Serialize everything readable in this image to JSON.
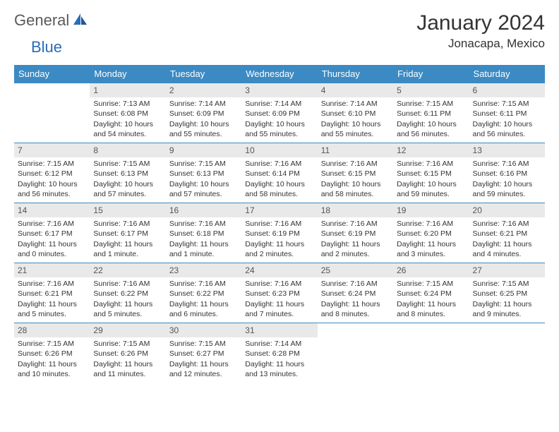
{
  "brand": {
    "first": "General",
    "second": "Blue"
  },
  "title": "January 2024",
  "location": "Jonacapa, Mexico",
  "colors": {
    "header_bg": "#3b8ac4",
    "header_text": "#ffffff",
    "row_border": "#3b8ac4",
    "daynum_bg": "#e9e9e9",
    "daynum_text": "#555555",
    "body_text": "#333333",
    "logo_gray": "#5a5a5a",
    "logo_blue": "#2a6db8"
  },
  "weekdays": [
    "Sunday",
    "Monday",
    "Tuesday",
    "Wednesday",
    "Thursday",
    "Friday",
    "Saturday"
  ],
  "weeks": [
    [
      {
        "n": "",
        "sr": "",
        "ss": "",
        "dl": ""
      },
      {
        "n": "1",
        "sr": "Sunrise: 7:13 AM",
        "ss": "Sunset: 6:08 PM",
        "dl": "Daylight: 10 hours and 54 minutes."
      },
      {
        "n": "2",
        "sr": "Sunrise: 7:14 AM",
        "ss": "Sunset: 6:09 PM",
        "dl": "Daylight: 10 hours and 55 minutes."
      },
      {
        "n": "3",
        "sr": "Sunrise: 7:14 AM",
        "ss": "Sunset: 6:09 PM",
        "dl": "Daylight: 10 hours and 55 minutes."
      },
      {
        "n": "4",
        "sr": "Sunrise: 7:14 AM",
        "ss": "Sunset: 6:10 PM",
        "dl": "Daylight: 10 hours and 55 minutes."
      },
      {
        "n": "5",
        "sr": "Sunrise: 7:15 AM",
        "ss": "Sunset: 6:11 PM",
        "dl": "Daylight: 10 hours and 56 minutes."
      },
      {
        "n": "6",
        "sr": "Sunrise: 7:15 AM",
        "ss": "Sunset: 6:11 PM",
        "dl": "Daylight: 10 hours and 56 minutes."
      }
    ],
    [
      {
        "n": "7",
        "sr": "Sunrise: 7:15 AM",
        "ss": "Sunset: 6:12 PM",
        "dl": "Daylight: 10 hours and 56 minutes."
      },
      {
        "n": "8",
        "sr": "Sunrise: 7:15 AM",
        "ss": "Sunset: 6:13 PM",
        "dl": "Daylight: 10 hours and 57 minutes."
      },
      {
        "n": "9",
        "sr": "Sunrise: 7:15 AM",
        "ss": "Sunset: 6:13 PM",
        "dl": "Daylight: 10 hours and 57 minutes."
      },
      {
        "n": "10",
        "sr": "Sunrise: 7:16 AM",
        "ss": "Sunset: 6:14 PM",
        "dl": "Daylight: 10 hours and 58 minutes."
      },
      {
        "n": "11",
        "sr": "Sunrise: 7:16 AM",
        "ss": "Sunset: 6:15 PM",
        "dl": "Daylight: 10 hours and 58 minutes."
      },
      {
        "n": "12",
        "sr": "Sunrise: 7:16 AM",
        "ss": "Sunset: 6:15 PM",
        "dl": "Daylight: 10 hours and 59 minutes."
      },
      {
        "n": "13",
        "sr": "Sunrise: 7:16 AM",
        "ss": "Sunset: 6:16 PM",
        "dl": "Daylight: 10 hours and 59 minutes."
      }
    ],
    [
      {
        "n": "14",
        "sr": "Sunrise: 7:16 AM",
        "ss": "Sunset: 6:17 PM",
        "dl": "Daylight: 11 hours and 0 minutes."
      },
      {
        "n": "15",
        "sr": "Sunrise: 7:16 AM",
        "ss": "Sunset: 6:17 PM",
        "dl": "Daylight: 11 hours and 1 minute."
      },
      {
        "n": "16",
        "sr": "Sunrise: 7:16 AM",
        "ss": "Sunset: 6:18 PM",
        "dl": "Daylight: 11 hours and 1 minute."
      },
      {
        "n": "17",
        "sr": "Sunrise: 7:16 AM",
        "ss": "Sunset: 6:19 PM",
        "dl": "Daylight: 11 hours and 2 minutes."
      },
      {
        "n": "18",
        "sr": "Sunrise: 7:16 AM",
        "ss": "Sunset: 6:19 PM",
        "dl": "Daylight: 11 hours and 2 minutes."
      },
      {
        "n": "19",
        "sr": "Sunrise: 7:16 AM",
        "ss": "Sunset: 6:20 PM",
        "dl": "Daylight: 11 hours and 3 minutes."
      },
      {
        "n": "20",
        "sr": "Sunrise: 7:16 AM",
        "ss": "Sunset: 6:21 PM",
        "dl": "Daylight: 11 hours and 4 minutes."
      }
    ],
    [
      {
        "n": "21",
        "sr": "Sunrise: 7:16 AM",
        "ss": "Sunset: 6:21 PM",
        "dl": "Daylight: 11 hours and 5 minutes."
      },
      {
        "n": "22",
        "sr": "Sunrise: 7:16 AM",
        "ss": "Sunset: 6:22 PM",
        "dl": "Daylight: 11 hours and 5 minutes."
      },
      {
        "n": "23",
        "sr": "Sunrise: 7:16 AM",
        "ss": "Sunset: 6:22 PM",
        "dl": "Daylight: 11 hours and 6 minutes."
      },
      {
        "n": "24",
        "sr": "Sunrise: 7:16 AM",
        "ss": "Sunset: 6:23 PM",
        "dl": "Daylight: 11 hours and 7 minutes."
      },
      {
        "n": "25",
        "sr": "Sunrise: 7:16 AM",
        "ss": "Sunset: 6:24 PM",
        "dl": "Daylight: 11 hours and 8 minutes."
      },
      {
        "n": "26",
        "sr": "Sunrise: 7:15 AM",
        "ss": "Sunset: 6:24 PM",
        "dl": "Daylight: 11 hours and 8 minutes."
      },
      {
        "n": "27",
        "sr": "Sunrise: 7:15 AM",
        "ss": "Sunset: 6:25 PM",
        "dl": "Daylight: 11 hours and 9 minutes."
      }
    ],
    [
      {
        "n": "28",
        "sr": "Sunrise: 7:15 AM",
        "ss": "Sunset: 6:26 PM",
        "dl": "Daylight: 11 hours and 10 minutes."
      },
      {
        "n": "29",
        "sr": "Sunrise: 7:15 AM",
        "ss": "Sunset: 6:26 PM",
        "dl": "Daylight: 11 hours and 11 minutes."
      },
      {
        "n": "30",
        "sr": "Sunrise: 7:15 AM",
        "ss": "Sunset: 6:27 PM",
        "dl": "Daylight: 11 hours and 12 minutes."
      },
      {
        "n": "31",
        "sr": "Sunrise: 7:14 AM",
        "ss": "Sunset: 6:28 PM",
        "dl": "Daylight: 11 hours and 13 minutes."
      },
      {
        "n": "",
        "sr": "",
        "ss": "",
        "dl": ""
      },
      {
        "n": "",
        "sr": "",
        "ss": "",
        "dl": ""
      },
      {
        "n": "",
        "sr": "",
        "ss": "",
        "dl": ""
      }
    ]
  ]
}
